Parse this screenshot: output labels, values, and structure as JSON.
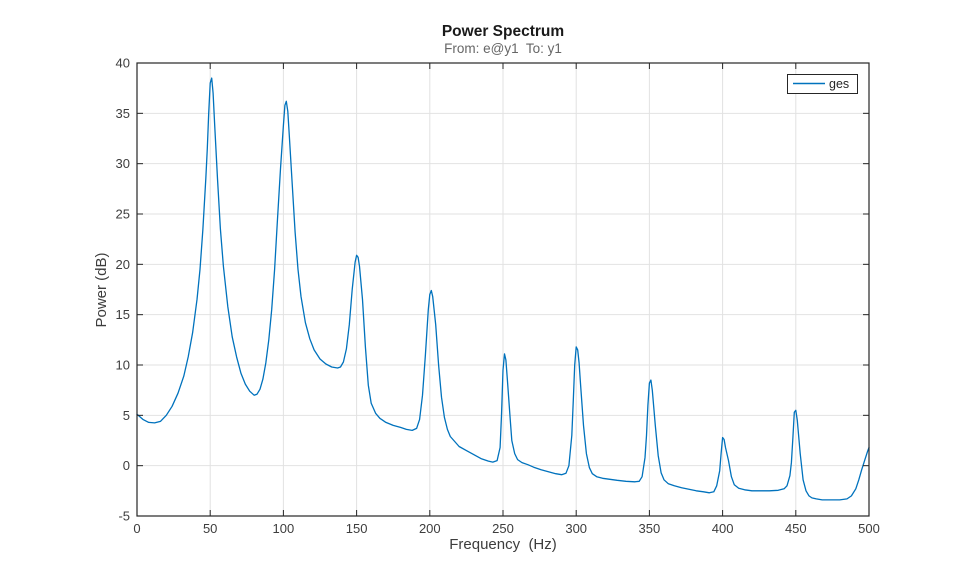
{
  "figure": {
    "background": "#ffffff"
  },
  "colors": {
    "line": "#0072BD",
    "grid": "#e2e2e2",
    "axis": "#262626",
    "tick_label": "#3d3d3d",
    "title": "#1a1a1a",
    "subtitle": "#666666",
    "legend_bg": "#ffffff",
    "legend_border": "#262626"
  },
  "chart_data": {
    "type": "line",
    "title": "Power Spectrum",
    "subtitle": "From: e@y1  To: y1",
    "xlabel": "Frequency  (Hz)",
    "ylabel": "Power (dB)",
    "xlim": [
      0,
      500
    ],
    "ylim": [
      -5,
      40
    ],
    "x_ticks": [
      0,
      50,
      100,
      150,
      200,
      250,
      300,
      350,
      400,
      450,
      500
    ],
    "y_ticks": [
      -5,
      0,
      5,
      10,
      15,
      20,
      25,
      30,
      35,
      40
    ],
    "grid": true,
    "box": true,
    "tick_direction": "in",
    "legend": {
      "position": "northeast",
      "entries": [
        {
          "label": "ges",
          "color": "#0072BD"
        }
      ]
    },
    "series": [
      {
        "name": "ges",
        "color": "#0072BD",
        "points": [
          [
            0,
            5.1
          ],
          [
            4,
            4.6
          ],
          [
            8,
            4.3
          ],
          [
            12,
            4.25
          ],
          [
            16,
            4.4
          ],
          [
            20,
            5.0
          ],
          [
            24,
            5.9
          ],
          [
            28,
            7.2
          ],
          [
            32,
            8.9
          ],
          [
            35,
            10.8
          ],
          [
            38,
            13.2
          ],
          [
            41,
            16.5
          ],
          [
            43,
            19.5
          ],
          [
            45,
            23.5
          ],
          [
            47,
            28.5
          ],
          [
            48,
            31.5
          ],
          [
            49,
            35.0
          ],
          [
            50,
            38.0
          ],
          [
            51,
            38.5
          ],
          [
            52,
            37.0
          ],
          [
            53,
            34.0
          ],
          [
            55,
            28.5
          ],
          [
            57,
            23.5
          ],
          [
            59,
            19.8
          ],
          [
            62,
            15.8
          ],
          [
            65,
            12.8
          ],
          [
            68,
            10.8
          ],
          [
            71,
            9.2
          ],
          [
            74,
            8.1
          ],
          [
            77,
            7.4
          ],
          [
            80,
            7.0
          ],
          [
            82,
            7.1
          ],
          [
            84,
            7.6
          ],
          [
            86,
            8.6
          ],
          [
            88,
            10.2
          ],
          [
            90,
            12.5
          ],
          [
            92,
            15.5
          ],
          [
            94,
            19.5
          ],
          [
            96,
            24.5
          ],
          [
            98,
            29.5
          ],
          [
            100,
            33.8
          ],
          [
            101,
            35.8
          ],
          [
            102,
            36.2
          ],
          [
            103,
            35.2
          ],
          [
            104,
            32.8
          ],
          [
            106,
            28.0
          ],
          [
            108,
            23.2
          ],
          [
            110,
            19.5
          ],
          [
            112,
            16.8
          ],
          [
            115,
            14.2
          ],
          [
            118,
            12.6
          ],
          [
            121,
            11.5
          ],
          [
            125,
            10.6
          ],
          [
            129,
            10.1
          ],
          [
            133,
            9.8
          ],
          [
            137,
            9.7
          ],
          [
            139,
            9.8
          ],
          [
            141,
            10.3
          ],
          [
            143,
            11.6
          ],
          [
            145,
            14.0
          ],
          [
            147,
            17.5
          ],
          [
            149,
            20.2
          ],
          [
            150,
            20.9
          ],
          [
            151,
            20.7
          ],
          [
            152,
            19.8
          ],
          [
            154,
            16.5
          ],
          [
            156,
            11.8
          ],
          [
            158,
            8.0
          ],
          [
            160,
            6.2
          ],
          [
            163,
            5.2
          ],
          [
            166,
            4.7
          ],
          [
            170,
            4.3
          ],
          [
            175,
            4.0
          ],
          [
            180,
            3.8
          ],
          [
            184,
            3.6
          ],
          [
            188,
            3.5
          ],
          [
            191,
            3.7
          ],
          [
            193,
            4.6
          ],
          [
            195,
            7.0
          ],
          [
            197,
            11.0
          ],
          [
            199,
            15.5
          ],
          [
            200,
            17.0
          ],
          [
            201,
            17.4
          ],
          [
            202,
            16.8
          ],
          [
            204,
            14.0
          ],
          [
            206,
            10.0
          ],
          [
            208,
            6.8
          ],
          [
            210,
            4.8
          ],
          [
            212,
            3.6
          ],
          [
            214,
            2.9
          ],
          [
            217,
            2.4
          ],
          [
            220,
            1.9
          ],
          [
            225,
            1.5
          ],
          [
            230,
            1.1
          ],
          [
            235,
            0.7
          ],
          [
            240,
            0.45
          ],
          [
            243,
            0.35
          ],
          [
            246,
            0.5
          ],
          [
            248,
            1.8
          ],
          [
            249,
            5.0
          ],
          [
            250,
            9.5
          ],
          [
            251,
            11.1
          ],
          [
            252,
            10.5
          ],
          [
            253,
            8.5
          ],
          [
            255,
            4.5
          ],
          [
            256,
            2.5
          ],
          [
            258,
            1.2
          ],
          [
            260,
            0.6
          ],
          [
            263,
            0.3
          ],
          [
            267,
            0.1
          ],
          [
            271,
            -0.15
          ],
          [
            276,
            -0.4
          ],
          [
            281,
            -0.6
          ],
          [
            286,
            -0.8
          ],
          [
            290,
            -0.9
          ],
          [
            293,
            -0.75
          ],
          [
            295,
            0.0
          ],
          [
            297,
            3.0
          ],
          [
            298,
            6.5
          ],
          [
            299,
            10.0
          ],
          [
            300,
            11.8
          ],
          [
            301,
            11.5
          ],
          [
            302,
            10.2
          ],
          [
            303,
            8.0
          ],
          [
            305,
            4.0
          ],
          [
            307,
            1.2
          ],
          [
            309,
            -0.2
          ],
          [
            311,
            -0.8
          ],
          [
            314,
            -1.1
          ],
          [
            318,
            -1.25
          ],
          [
            323,
            -1.35
          ],
          [
            328,
            -1.45
          ],
          [
            334,
            -1.55
          ],
          [
            340,
            -1.6
          ],
          [
            343,
            -1.55
          ],
          [
            345,
            -1.1
          ],
          [
            347,
            0.8
          ],
          [
            348,
            3.0
          ],
          [
            349,
            6.0
          ],
          [
            350,
            8.2
          ],
          [
            351,
            8.5
          ],
          [
            352,
            7.5
          ],
          [
            354,
            4.0
          ],
          [
            356,
            1.0
          ],
          [
            358,
            -0.7
          ],
          [
            360,
            -1.4
          ],
          [
            363,
            -1.8
          ],
          [
            367,
            -2.0
          ],
          [
            372,
            -2.2
          ],
          [
            377,
            -2.35
          ],
          [
            382,
            -2.5
          ],
          [
            387,
            -2.6
          ],
          [
            391,
            -2.7
          ],
          [
            394,
            -2.6
          ],
          [
            396,
            -2.0
          ],
          [
            398,
            -0.5
          ],
          [
            399,
            1.2
          ],
          [
            400,
            2.8
          ],
          [
            401,
            2.6
          ],
          [
            402,
            1.8
          ],
          [
            404,
            0.5
          ],
          [
            406,
            -1.1
          ],
          [
            408,
            -1.9
          ],
          [
            411,
            -2.25
          ],
          [
            415,
            -2.4
          ],
          [
            420,
            -2.5
          ],
          [
            426,
            -2.5
          ],
          [
            432,
            -2.5
          ],
          [
            438,
            -2.45
          ],
          [
            442,
            -2.3
          ],
          [
            444,
            -2.0
          ],
          [
            446,
            -1.0
          ],
          [
            447,
            0.3
          ],
          [
            448,
            2.8
          ],
          [
            449,
            5.3
          ],
          [
            450,
            5.5
          ],
          [
            451,
            4.5
          ],
          [
            453,
            1.2
          ],
          [
            455,
            -1.4
          ],
          [
            457,
            -2.5
          ],
          [
            459,
            -3.0
          ],
          [
            461,
            -3.2
          ],
          [
            464,
            -3.3
          ],
          [
            468,
            -3.4
          ],
          [
            474,
            -3.4
          ],
          [
            480,
            -3.4
          ],
          [
            485,
            -3.3
          ],
          [
            488,
            -3.0
          ],
          [
            491,
            -2.3
          ],
          [
            493,
            -1.4
          ],
          [
            495,
            -0.4
          ],
          [
            497,
            0.5
          ],
          [
            499,
            1.4
          ],
          [
            500,
            1.8
          ]
        ]
      }
    ]
  }
}
